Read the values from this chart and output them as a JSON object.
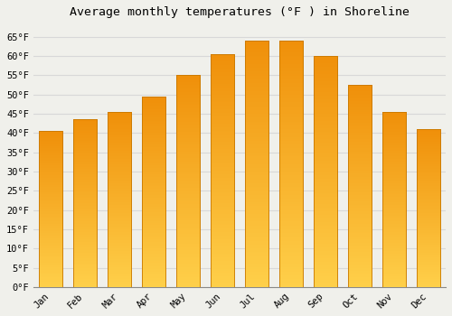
{
  "title": "Average monthly temperatures (°F ) in Shoreline",
  "months": [
    "Jan",
    "Feb",
    "Mar",
    "Apr",
    "May",
    "Jun",
    "Jul",
    "Aug",
    "Sep",
    "Oct",
    "Nov",
    "Dec"
  ],
  "values": [
    40.5,
    43.5,
    45.5,
    49.5,
    55.0,
    60.5,
    64.0,
    64.0,
    60.0,
    52.5,
    45.5,
    41.0
  ],
  "bar_color_bottom": "#FFD04A",
  "bar_color_top": "#F0900A",
  "bar_edge_color": "#C87800",
  "ylim": [
    0,
    68
  ],
  "yticks": [
    0,
    5,
    10,
    15,
    20,
    25,
    30,
    35,
    40,
    45,
    50,
    55,
    60,
    65
  ],
  "ytick_labels": [
    "0°F",
    "5°F",
    "10°F",
    "15°F",
    "20°F",
    "25°F",
    "30°F",
    "35°F",
    "40°F",
    "45°F",
    "50°F",
    "55°F",
    "60°F",
    "65°F"
  ],
  "bg_color": "#f0f0eb",
  "grid_color": "#d8d8d8",
  "title_fontsize": 9.5,
  "tick_fontsize": 7.5,
  "bar_width": 0.7,
  "font_family": "monospace"
}
